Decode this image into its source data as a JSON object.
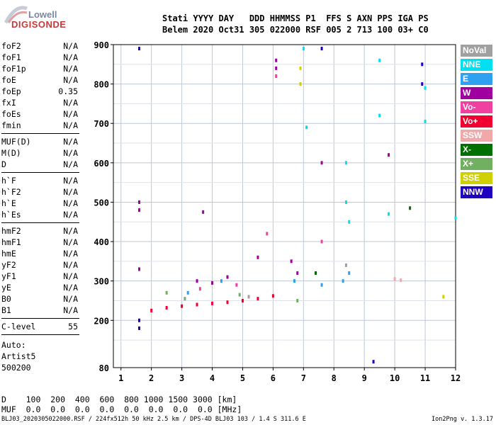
{
  "logo": {
    "line1": "Lowell",
    "line2": "DIGISONDE"
  },
  "header": {
    "line1": "Stati YYYY DAY   DDD HHMMSS P1  FFS S AXN PPS IGA PS",
    "line2": "Belem 2020 Oct31 305 022000 RSF 005 2 713 100 03+ C0"
  },
  "params": {
    "group1": [
      {
        "name": "foF2",
        "value": "N/A"
      },
      {
        "name": "foF1",
        "value": "N/A"
      },
      {
        "name": "foF1p",
        "value": "N/A"
      },
      {
        "name": "foE",
        "value": "N/A"
      },
      {
        "name": "foEp",
        "value": "0.35"
      },
      {
        "name": "fxI",
        "value": "N/A"
      },
      {
        "name": "foEs",
        "value": "N/A"
      },
      {
        "name": "fmin",
        "value": "N/A"
      }
    ],
    "group2": [
      {
        "name": "MUF(D)",
        "value": "N/A"
      },
      {
        "name": "M(D)",
        "value": "N/A"
      },
      {
        "name": "D",
        "value": "N/A"
      }
    ],
    "group3": [
      {
        "name": "h`F",
        "value": "N/A"
      },
      {
        "name": "h`F2",
        "value": "N/A"
      },
      {
        "name": "h`E",
        "value": "N/A"
      },
      {
        "name": "h`Es",
        "value": "N/A"
      }
    ],
    "group4": [
      {
        "name": "hmF2",
        "value": "N/A"
      },
      {
        "name": "hmF1",
        "value": "N/A"
      },
      {
        "name": "hmE",
        "value": "N/A"
      },
      {
        "name": "yF2",
        "value": "N/A"
      },
      {
        "name": "yF1",
        "value": "N/A"
      },
      {
        "name": "yE",
        "value": "N/A"
      },
      {
        "name": "B0",
        "value": "N/A"
      },
      {
        "name": "B1",
        "value": "N/A"
      }
    ],
    "group5": [
      {
        "name": "C-level",
        "value": "55"
      }
    ]
  },
  "auto": {
    "line1": "Auto:",
    "line2": "Artist5",
    "line3": "500200"
  },
  "dtable": {
    "row_d": "D    100  200  400  600  800 1000 1500 3000 [km]",
    "row_muf": "MUF  0.0  0.0  0.0  0.0  0.0  0.0  0.0  0.0 [MHz]"
  },
  "footer": {
    "left": "BLJ03_2020305022000.RSF / 224fx512h 50 kHz 2.5 km / DPS-4D BLJ03 103 / 1.4 S 311.6 E",
    "right": "Ion2Png v. 1.3.17"
  },
  "legend": [
    {
      "label": "NoVal",
      "color": "#a0a0a0"
    },
    {
      "label": "NNE",
      "color": "#00e0f0"
    },
    {
      "label": "E",
      "color": "#30a0f0"
    },
    {
      "label": "W",
      "color": "#a000a0"
    },
    {
      "label": "Vo-",
      "color": "#f040a0"
    },
    {
      "label": "Vo+",
      "color": "#f00030"
    },
    {
      "label": "SSW",
      "color": "#f0a8a8"
    },
    {
      "label": "X-",
      "color": "#007000"
    },
    {
      "label": "X+",
      "color": "#70b060"
    },
    {
      "label": "SSE",
      "color": "#d0d000"
    },
    {
      "label": "NNW",
      "color": "#2000c0"
    }
  ],
  "chart_data": {
    "type": "scatter",
    "title": "",
    "xlabel": "",
    "ylabel": "",
    "xlim": [
      0.75,
      12
    ],
    "ylim": [
      80,
      900
    ],
    "x_ticks": [
      "1",
      "2",
      "3",
      "4",
      "5",
      "6",
      "7",
      "8",
      "9",
      "10",
      "11",
      "12"
    ],
    "y_ticks": [
      "200",
      "300",
      "400",
      "500",
      "600",
      "700",
      "800",
      "900"
    ],
    "y_tick_bottom": "80",
    "grid": true,
    "series": [
      {
        "color": "#f00030",
        "points": [
          [
            2.0,
            225
          ],
          [
            2.5,
            232
          ],
          [
            3.0,
            236
          ],
          [
            3.5,
            240
          ],
          [
            4.0,
            243
          ],
          [
            4.5,
            246
          ],
          [
            5.0,
            250
          ],
          [
            5.5,
            255
          ],
          [
            6.0,
            262
          ]
        ]
      },
      {
        "color": "#a000a0",
        "points": [
          [
            1.6,
            330
          ],
          [
            1.6,
            480
          ],
          [
            1.6,
            500
          ],
          [
            6.1,
            860
          ],
          [
            6.1,
            840
          ],
          [
            6.6,
            350
          ],
          [
            6.8,
            320
          ],
          [
            7.6,
            600
          ],
          [
            9.8,
            620
          ],
          [
            3.5,
            300
          ],
          [
            4.0,
            295
          ],
          [
            5.5,
            360
          ],
          [
            3.7,
            475
          ],
          [
            4.5,
            310
          ]
        ]
      },
      {
        "color": "#00e0f0",
        "points": [
          [
            7.0,
            890
          ],
          [
            7.1,
            690
          ],
          [
            8.4,
            600
          ],
          [
            8.4,
            500
          ],
          [
            8.5,
            450
          ],
          [
            9.5,
            720
          ],
          [
            9.5,
            860
          ],
          [
            11.0,
            705
          ],
          [
            11.0,
            790
          ],
          [
            12.0,
            460
          ],
          [
            9.8,
            470
          ]
        ]
      },
      {
        "color": "#30a0f0",
        "points": [
          [
            6.7,
            300
          ],
          [
            8.3,
            300
          ],
          [
            8.5,
            320
          ],
          [
            4.3,
            300
          ],
          [
            3.2,
            270
          ],
          [
            7.6,
            290
          ]
        ]
      },
      {
        "color": "#f040a0",
        "points": [
          [
            6.1,
            820
          ],
          [
            7.6,
            400
          ],
          [
            5.8,
            420
          ],
          [
            3.6,
            280
          ],
          [
            4.8,
            290
          ]
        ]
      },
      {
        "color": "#2000c0",
        "points": [
          [
            1.6,
            890
          ],
          [
            1.6,
            200
          ],
          [
            1.6,
            180
          ],
          [
            10.9,
            850
          ],
          [
            10.9,
            800
          ],
          [
            7.6,
            890
          ],
          [
            9.3,
            95
          ]
        ]
      },
      {
        "color": "#70b060",
        "points": [
          [
            2.5,
            270
          ],
          [
            3.1,
            255
          ],
          [
            6.8,
            250
          ],
          [
            4.9,
            265
          ]
        ]
      },
      {
        "color": "#007000",
        "points": [
          [
            10.5,
            485
          ],
          [
            7.4,
            320
          ]
        ]
      },
      {
        "color": "#d0d000",
        "points": [
          [
            6.9,
            840
          ],
          [
            6.9,
            800
          ],
          [
            11.6,
            260
          ]
        ]
      },
      {
        "color": "#f0a8a8",
        "points": [
          [
            10.0,
            305
          ],
          [
            10.2,
            302
          ]
        ]
      },
      {
        "color": "#a0a0a0",
        "points": [
          [
            8.4,
            340
          ],
          [
            5.2,
            260
          ]
        ]
      }
    ]
  }
}
